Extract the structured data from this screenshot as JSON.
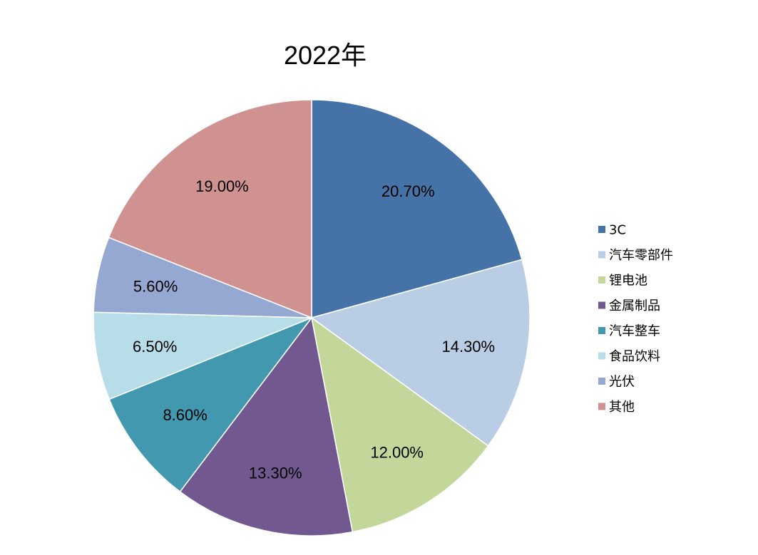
{
  "chart_data": {
    "type": "pie",
    "title": "2022年",
    "legend_position": "right",
    "start_angle_deg": 0,
    "direction": "clockwise",
    "slices": [
      {
        "name": "3C",
        "value": 20.7,
        "label": "20.70%",
        "color": "#4673A7"
      },
      {
        "name": "汽车零部件",
        "value": 14.3,
        "label": "14.30%",
        "color": "#B9CDE5"
      },
      {
        "name": "锂电池",
        "value": 12.0,
        "label": "12.00%",
        "color": "#C4D79B"
      },
      {
        "name": "金属制品",
        "value": 13.3,
        "label": "13.30%",
        "color": "#71588F"
      },
      {
        "name": "汽车整车",
        "value": 8.6,
        "label": "8.60%",
        "color": "#4198AF"
      },
      {
        "name": "食品饮料",
        "value": 6.5,
        "label": "6.50%",
        "color": "#B6DDE8"
      },
      {
        "name": "光伏",
        "value": 5.6,
        "label": "5.60%",
        "color": "#95A8D2"
      },
      {
        "name": "其他",
        "value": 19.0,
        "label": "19.00%",
        "color": "#D09291"
      }
    ]
  }
}
